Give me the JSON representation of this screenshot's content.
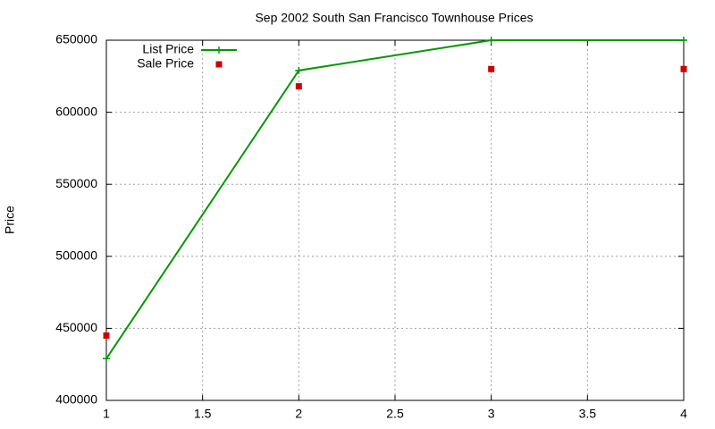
{
  "chart_data": {
    "type": "line",
    "title": "Sep 2002 South San Francisco Townhouse Prices",
    "y_label": "Price",
    "x": [
      1,
      2,
      3,
      4
    ],
    "series": [
      {
        "name": "List Price",
        "color": "#009900",
        "values": [
          429000,
          629000,
          650000,
          650000
        ],
        "line": true,
        "marker": "plus"
      },
      {
        "name": "Sale Price",
        "color": "#cc0000",
        "values": [
          445000,
          618000,
          630000,
          630000
        ],
        "line": false,
        "marker": "square"
      }
    ],
    "xlim": [
      1,
      4
    ],
    "xticks": [
      1,
      1.5,
      2,
      2.5,
      3,
      3.5,
      4
    ],
    "ylim": [
      400000,
      650000
    ],
    "yticks": [
      400000,
      450000,
      500000,
      550000,
      600000,
      650000
    ],
    "grid": true,
    "legend": "top-left"
  }
}
